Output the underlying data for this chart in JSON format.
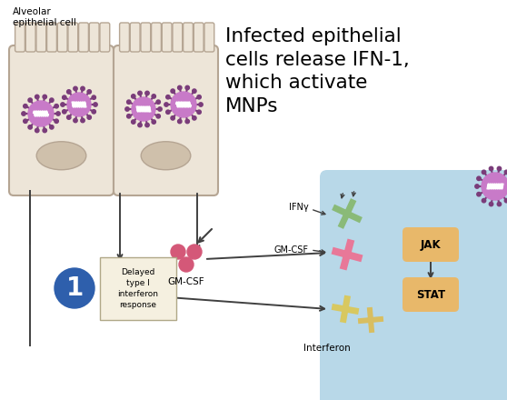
{
  "bg_color": "#ffffff",
  "title_text": "Infected epithelial\ncells release IFN-1,\nwhich activate\nMNPs",
  "label_alveolar": "Alveolar\nepithelial cell",
  "label_gmcsf": "GM-CSF",
  "label_interferon": "Interferon",
  "label_ifng": "IFNγ",
  "label_gmcsf2": "GM-CSF",
  "label_jak": "JAK",
  "label_stat": "STAT",
  "label_delayed": "Delayed\ntype I\ninterferon\nresponse",
  "cell_body_color": "#ede5d8",
  "cell_nucleus_color": "#cfc0ab",
  "cell_border_color": "#b5a593",
  "virus_body_color": "#c87ac8",
  "virus_spike_color": "#7a3c7a",
  "gmcsf_dot_color": "#d45878",
  "arrow_color": "#404040",
  "circle_num_color": "#2e5fac",
  "jak_stat_color": "#e8b86a",
  "receptor_pink_color": "#e87898",
  "receptor_green_color": "#8aba78",
  "receptor_yellow_color": "#d8c860",
  "receptor_yellow2_color": "#d8be60",
  "mnp_cell_color": "#b8d8e8",
  "box_color": "#f5f0e0",
  "box_border_color": "#b0a888"
}
